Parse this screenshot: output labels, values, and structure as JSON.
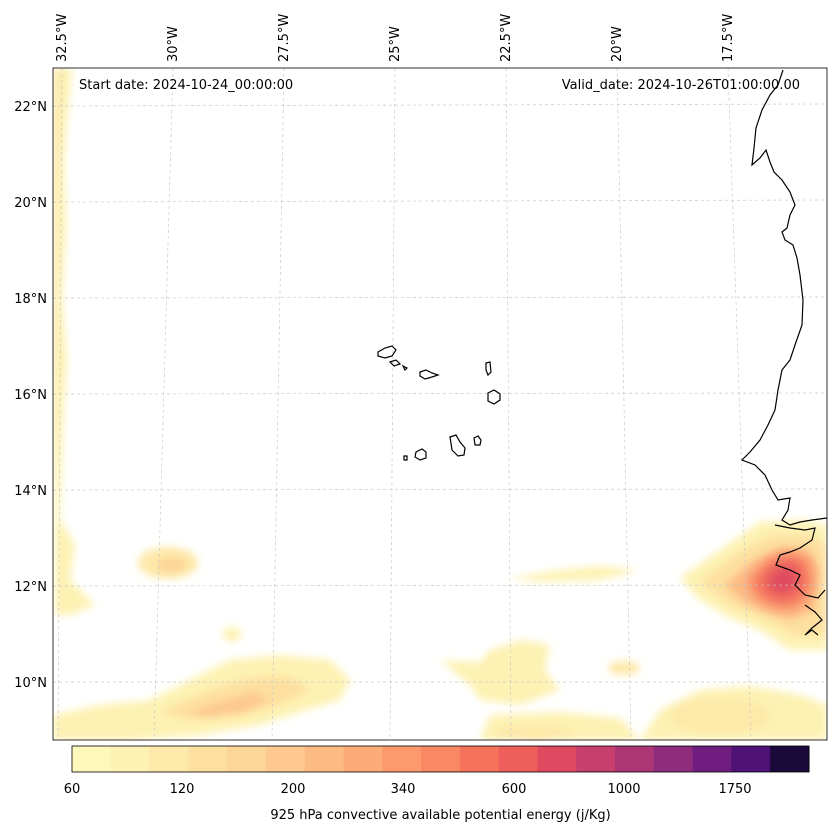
{
  "map": {
    "start_date_label": "Start date: 2024-10-24_00:00:00",
    "valid_date_label": "Valid_date: 2024-10-26T01:00:00.00",
    "longitude_labels": [
      "32.5°W",
      "30°W",
      "27.5°W",
      "25°W",
      "22.5°W",
      "20°W",
      "17.5°W"
    ],
    "latitude_labels": [
      "22°N",
      "20°N",
      "18°N",
      "16°N",
      "14°N",
      "12°N",
      "10°N"
    ],
    "colorbar": {
      "title": "925 hPa convective available potential energy (j/Kg)",
      "tick_labels": [
        "60",
        "120",
        "200",
        "340",
        "600",
        "1000",
        "1750"
      ],
      "colors": [
        "#fdf9bd",
        "#fdf2b3",
        "#fde9a9",
        "#fde0a0",
        "#fdd597",
        "#fdc98e",
        "#fdbb84",
        "#fdab79",
        "#fc9a6e",
        "#fa8863",
        "#f6735b",
        "#ee5e5a",
        "#df4a61",
        "#c73f6c",
        "#ac3576",
        "#8f2c7c",
        "#6f1e7f",
        "#4e1276",
        "#1a0a3a"
      ]
    },
    "colors": {
      "coastline": "#000000",
      "grid": "#c8c8c8"
    }
  }
}
